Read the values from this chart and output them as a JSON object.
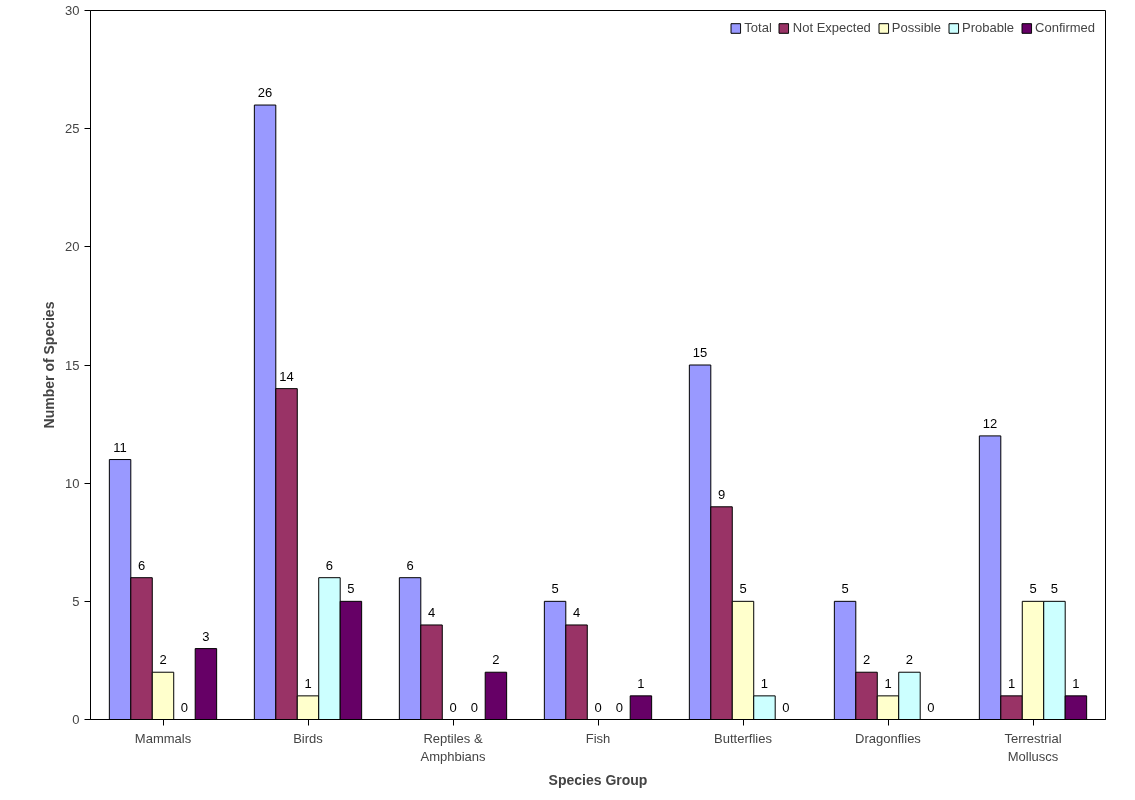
{
  "chart_data": {
    "type": "bar",
    "xlabel": "Species Group",
    "ylabel": "Number of Species",
    "categories": [
      "Mammals",
      "Birds",
      "Reptiles &\nAmphbians",
      "Fish",
      "Butterflies",
      "Dragonflies",
      "Terrestrial\nMolluscs"
    ],
    "series": [
      {
        "name": "Total",
        "color": "#9999ff",
        "values": [
          11,
          26,
          6,
          5,
          15,
          5,
          12
        ]
      },
      {
        "name": "Not Expected",
        "color": "#993366",
        "values": [
          6,
          14,
          4,
          4,
          9,
          2,
          1
        ]
      },
      {
        "name": "Possible",
        "color": "#ffffcc",
        "values": [
          2,
          1,
          0,
          0,
          5,
          1,
          5
        ]
      },
      {
        "name": "Probable",
        "color": "#ccffff",
        "values": [
          0,
          6,
          0,
          0,
          1,
          2,
          5
        ]
      },
      {
        "name": "Confirmed",
        "color": "#660066",
        "values": [
          3,
          5,
          2,
          1,
          0,
          0,
          1
        ]
      }
    ],
    "ylim": [
      0,
      30
    ],
    "yticks": [
      0,
      5,
      10,
      15,
      20,
      25,
      30
    ],
    "data_labels": true,
    "legend": "top right",
    "grid": false
  }
}
